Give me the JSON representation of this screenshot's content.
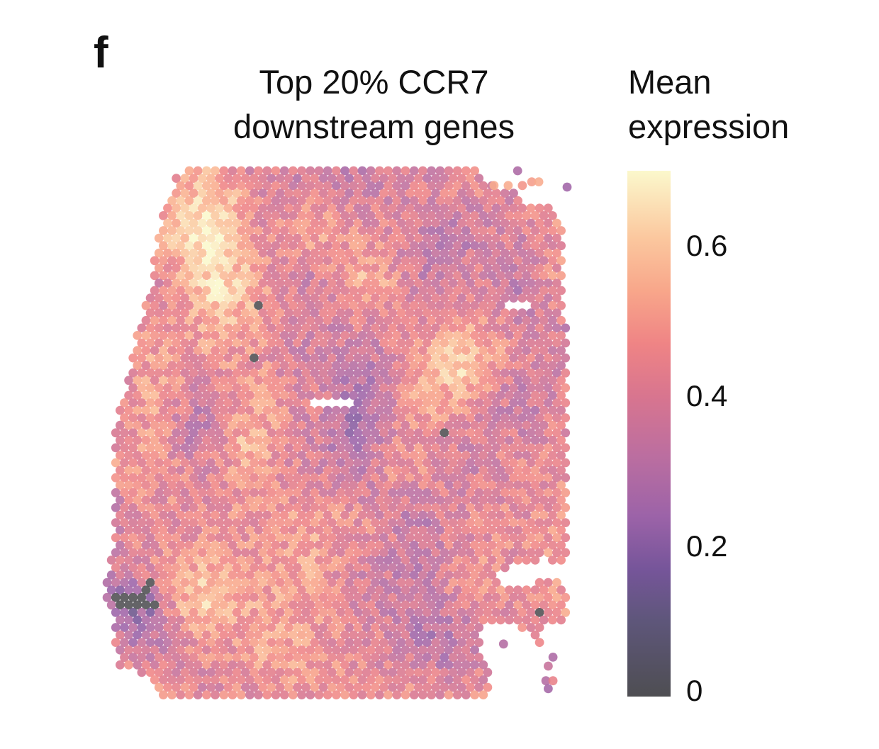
{
  "panel_label": "f",
  "chart_data": {
    "type": "heatmap",
    "subtype": "spatial-transcriptomics-spot-map",
    "title_lines": [
      "Top 20% CCR7",
      "downstream genes"
    ],
    "colorbar": {
      "title_lines": [
        "Mean",
        "expression"
      ],
      "range": [
        0,
        0.7
      ],
      "ticks": [
        0,
        0.2,
        0.4,
        0.6
      ],
      "tick_labels": [
        "0",
        "0.2",
        "0.4",
        "0.6"
      ],
      "colormap": "magma-like (dark grey → purple → pink → peach → pale yellow)",
      "color_stops": [
        {
          "value": 0.0,
          "color": "#4e4e52"
        },
        {
          "value": 0.1,
          "color": "#5e567a"
        },
        {
          "value": 0.17,
          "color": "#76559a"
        },
        {
          "value": 0.24,
          "color": "#9c63a8"
        },
        {
          "value": 0.32,
          "color": "#bb6ea0"
        },
        {
          "value": 0.4,
          "color": "#d8758f"
        },
        {
          "value": 0.47,
          "color": "#ef8485"
        },
        {
          "value": 0.54,
          "color": "#f8a68a"
        },
        {
          "value": 0.61,
          "color": "#fbc79e"
        },
        {
          "value": 0.7,
          "color": "#fbf8cc"
        }
      ]
    },
    "spots": {
      "description": "Hexagonally packed Visium-style spots; each colored by mean expression",
      "typical_value": 0.42,
      "value_spread": 0.16,
      "high_regions": [
        {
          "cx": 0.22,
          "cy": 0.1,
          "r": 0.12,
          "delta": 0.18
        },
        {
          "cx": 0.3,
          "cy": 0.24,
          "r": 0.09,
          "delta": 0.14
        },
        {
          "cx": 0.56,
          "cy": 0.2,
          "r": 0.07,
          "delta": 0.12
        },
        {
          "cx": 0.75,
          "cy": 0.38,
          "r": 0.08,
          "delta": 0.15
        },
        {
          "cx": 0.6,
          "cy": 0.55,
          "r": 0.06,
          "delta": 0.1
        },
        {
          "cx": 0.22,
          "cy": 0.84,
          "r": 0.08,
          "delta": 0.16
        },
        {
          "cx": 0.35,
          "cy": 0.9,
          "r": 0.07,
          "delta": 0.12
        },
        {
          "cx": 0.3,
          "cy": 0.52,
          "r": 0.06,
          "delta": 0.1
        }
      ],
      "low_regions": [
        {
          "cx": 0.5,
          "cy": 0.48,
          "r": 0.14,
          "delta": -0.12
        },
        {
          "cx": 0.2,
          "cy": 0.48,
          "r": 0.07,
          "delta": -0.1
        },
        {
          "cx": 0.72,
          "cy": 0.16,
          "r": 0.1,
          "delta": -0.1
        },
        {
          "cx": 0.7,
          "cy": 0.9,
          "r": 0.08,
          "delta": -0.1
        },
        {
          "cx": 0.07,
          "cy": 0.82,
          "r": 0.06,
          "delta": -0.22
        }
      ],
      "zero_value_spots": [
        {
          "fx": 0.335,
          "fy": 0.252
        },
        {
          "fx": 0.317,
          "fy": 0.355
        },
        {
          "fx": 0.725,
          "fy": 0.495
        },
        {
          "fx": 0.919,
          "fy": 0.843
        },
        {
          "fx": 0.024,
          "fy": 0.808
        },
        {
          "fx": 0.04,
          "fy": 0.808
        },
        {
          "fx": 0.032,
          "fy": 0.822
        },
        {
          "fx": 0.048,
          "fy": 0.822
        },
        {
          "fx": 0.056,
          "fy": 0.808
        },
        {
          "fx": 0.08,
          "fy": 0.822
        },
        {
          "fx": 0.096,
          "fy": 0.822
        },
        {
          "fx": 0.112,
          "fy": 0.822
        },
        {
          "fx": 0.088,
          "fy": 0.808
        },
        {
          "fx": 0.095,
          "fy": 0.79
        }
      ],
      "tissue_outline": [
        [
          0.17,
          0.0
        ],
        [
          0.8,
          0.0
        ],
        [
          0.83,
          0.03
        ],
        [
          0.88,
          0.03
        ],
        [
          0.9,
          0.06
        ],
        [
          0.95,
          0.06
        ],
        [
          0.975,
          0.1
        ],
        [
          0.98,
          0.2
        ],
        [
          0.985,
          0.5
        ],
        [
          0.985,
          0.75
        ],
        [
          0.935,
          0.74
        ],
        [
          0.91,
          0.75
        ],
        [
          0.86,
          0.75
        ],
        [
          0.84,
          0.77
        ],
        [
          0.85,
          0.8
        ],
        [
          0.96,
          0.77
        ],
        [
          0.99,
          0.8
        ],
        [
          0.985,
          0.86
        ],
        [
          0.93,
          0.87
        ],
        [
          0.93,
          0.9
        ],
        [
          0.86,
          0.86
        ],
        [
          0.8,
          0.87
        ],
        [
          0.8,
          0.9
        ],
        [
          0.82,
          0.96
        ],
        [
          0.82,
          1.0
        ],
        [
          0.13,
          1.0
        ],
        [
          0.1,
          0.96
        ],
        [
          0.03,
          0.94
        ],
        [
          0.02,
          0.86
        ],
        [
          0.0,
          0.79
        ],
        [
          0.025,
          0.72
        ],
        [
          0.025,
          0.5
        ],
        [
          0.06,
          0.36
        ],
        [
          0.1,
          0.22
        ],
        [
          0.12,
          0.1
        ],
        [
          0.15,
          0.02
        ]
      ],
      "holes": [
        {
          "fx": 0.49,
          "fy": 0.44,
          "rx": 0.05,
          "ry": 0.012
        },
        {
          "fx": 0.88,
          "fy": 0.255,
          "rx": 0.03,
          "ry": 0.01
        }
      ],
      "outlier_spots": [
        {
          "fx": 0.88,
          "fy": 0.0,
          "value": 0.28
        },
        {
          "fx": 0.83,
          "fy": 0.028,
          "value": 0.55
        },
        {
          "fx": 0.86,
          "fy": 0.028,
          "value": 0.55
        },
        {
          "fx": 0.89,
          "fy": 0.028,
          "value": 0.5
        },
        {
          "fx": 0.91,
          "fy": 0.021,
          "value": 0.52
        },
        {
          "fx": 0.925,
          "fy": 0.021,
          "value": 0.55
        },
        {
          "fx": 0.985,
          "fy": 0.031,
          "value": 0.25
        },
        {
          "fx": 0.85,
          "fy": 0.9,
          "value": 0.3
        },
        {
          "fx": 0.955,
          "fy": 0.925,
          "value": 0.28
        },
        {
          "fx": 0.945,
          "fy": 0.942,
          "value": 0.35
        },
        {
          "fx": 0.94,
          "fy": 0.97,
          "value": 0.3
        },
        {
          "fx": 0.955,
          "fy": 0.97,
          "value": 0.45
        },
        {
          "fx": 0.945,
          "fy": 0.985,
          "value": 0.26
        }
      ]
    }
  }
}
